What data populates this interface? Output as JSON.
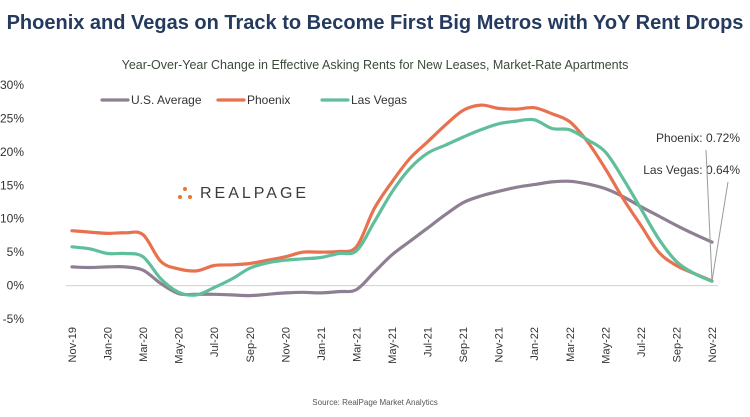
{
  "chart_data": {
    "type": "line",
    "title": "Phoenix and Vegas on Track to Become First Big Metros with YoY Rent Drops",
    "subtitle": "Year-Over-Year Change in Effective Asking Rents for New Leases, Market-Rate Apartments",
    "source": "Source: RealPage Market Analytics",
    "logo_text": "REALPAGE",
    "ylim": [
      -5,
      30
    ],
    "yticks": [
      "30%",
      "25%",
      "20%",
      "15%",
      "10%",
      "5%",
      "0%",
      "-5%"
    ],
    "ytick_values": [
      30,
      25,
      20,
      15,
      10,
      5,
      0,
      -5
    ],
    "xtick_labels": [
      "Nov-19",
      "Jan-20",
      "Mar-20",
      "May-20",
      "Jul-20",
      "Sep-20",
      "Nov-20",
      "Jan-21",
      "Mar-21",
      "May-21",
      "Jul-21",
      "Sep-21",
      "Nov-21",
      "Jan-22",
      "Mar-22",
      "May-22",
      "Jul-22",
      "Sep-22",
      "Nov-22"
    ],
    "x": [
      "Nov-19",
      "Dec-19",
      "Jan-20",
      "Feb-20",
      "Mar-20",
      "Apr-20",
      "May-20",
      "Jun-20",
      "Jul-20",
      "Aug-20",
      "Sep-20",
      "Oct-20",
      "Nov-20",
      "Dec-20",
      "Jan-21",
      "Feb-21",
      "Mar-21",
      "Apr-21",
      "May-21",
      "Jun-21",
      "Jul-21",
      "Aug-21",
      "Sep-21",
      "Oct-21",
      "Nov-21",
      "Dec-21",
      "Jan-22",
      "Feb-22",
      "Mar-22",
      "Apr-22",
      "May-22",
      "Jun-22",
      "Jul-22",
      "Aug-22",
      "Sep-22",
      "Oct-22",
      "Nov-22"
    ],
    "series": [
      {
        "name": "U.S. Average",
        "color": "#8e7f93",
        "values": [
          2.8,
          2.7,
          2.8,
          2.8,
          2.3,
          0.3,
          -1.2,
          -1.3,
          -1.3,
          -1.4,
          -1.5,
          -1.3,
          -1.1,
          -1.0,
          -1.1,
          -0.9,
          -0.6,
          2.0,
          4.6,
          6.6,
          8.6,
          10.6,
          12.4,
          13.4,
          14.1,
          14.7,
          15.1,
          15.5,
          15.6,
          15.2,
          14.5,
          13.3,
          11.8,
          10.4,
          9.0,
          7.7,
          6.5
        ]
      },
      {
        "name": "Phoenix",
        "color": "#e8714f",
        "values": [
          8.2,
          8.0,
          7.8,
          7.9,
          7.6,
          3.6,
          2.5,
          2.2,
          3.0,
          3.1,
          3.3,
          3.8,
          4.3,
          5.0,
          5.0,
          5.1,
          5.8,
          11.5,
          15.5,
          19.0,
          21.5,
          24.0,
          26.2,
          27.0,
          26.5,
          26.4,
          26.6,
          25.7,
          24.5,
          21.5,
          17.5,
          13.0,
          9.0,
          5.0,
          3.0,
          1.8,
          0.72
        ]
      },
      {
        "name": "Las Vegas",
        "color": "#5fbf9a",
        "values": [
          5.8,
          5.5,
          4.8,
          4.8,
          4.3,
          1.0,
          -1.0,
          -1.4,
          -0.3,
          1.0,
          2.6,
          3.4,
          3.8,
          4.0,
          4.2,
          4.8,
          5.2,
          9.5,
          14.0,
          17.5,
          19.8,
          21.0,
          22.2,
          23.3,
          24.2,
          24.6,
          24.8,
          23.5,
          23.3,
          21.8,
          20.0,
          16.0,
          11.5,
          7.0,
          3.6,
          1.8,
          0.64
        ]
      }
    ],
    "annotations": [
      "Phoenix: 0.72%",
      "Las Vegas: 0.64%"
    ],
    "legend_position": "top-left",
    "grid": false
  }
}
